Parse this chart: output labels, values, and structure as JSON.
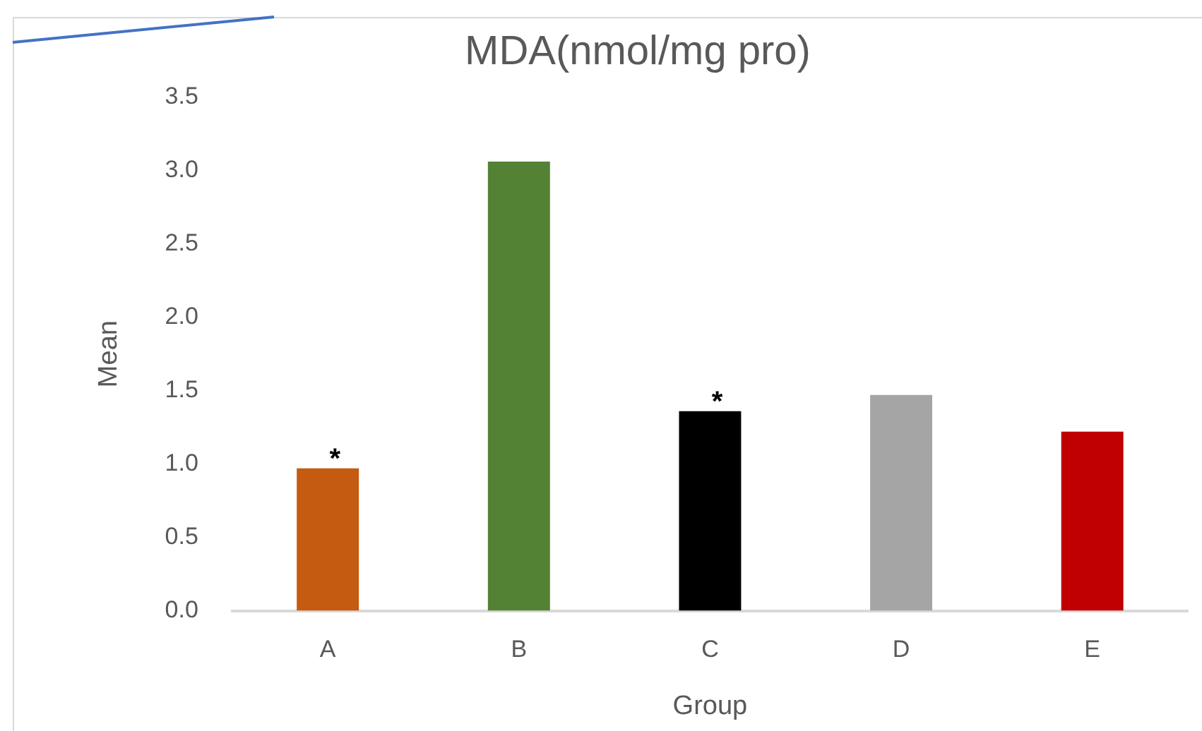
{
  "chart_data": {
    "type": "bar",
    "title": "MDA(nmol/mg pro)",
    "xlabel": "Group",
    "ylabel": "Mean",
    "categories": [
      "A",
      "B",
      "C",
      "D",
      "E"
    ],
    "values": [
      0.97,
      3.06,
      1.36,
      1.47,
      1.22
    ],
    "colors": [
      "#c55a11",
      "#548235",
      "#000000",
      "#a5a5a5",
      "#c00000"
    ],
    "ylim": [
      0,
      3.5
    ],
    "yticks": [
      {
        "value": 0,
        "label": "0.0"
      },
      {
        "value": 0.5,
        "label": "0.5"
      },
      {
        "value": 1,
        "label": "1.0"
      },
      {
        "value": 1.5,
        "label": "1.5"
      },
      {
        "value": 2,
        "label": "2.0"
      },
      {
        "value": 2.5,
        "label": "2.5"
      },
      {
        "value": 3,
        "label": "3.0"
      },
      {
        "value": 3.5,
        "label": "3.5"
      }
    ],
    "grid": false,
    "legend": false,
    "annotations": [
      {
        "text": "*",
        "x": "A",
        "y": 0.97
      },
      {
        "text": "*",
        "x": "C",
        "y": 1.36
      }
    ]
  }
}
